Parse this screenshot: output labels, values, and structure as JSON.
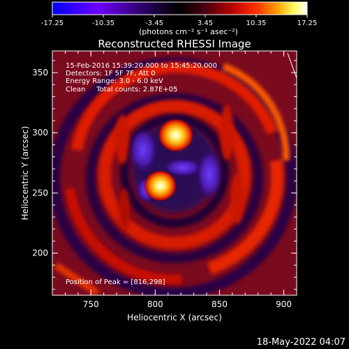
{
  "colorbar": {
    "ticks": [
      "-17.25",
      "-10.35",
      "-3.45",
      "3.45",
      "10.35",
      "17.25"
    ],
    "units": "(photons cm⁻² s⁻¹ asec⁻²)",
    "stops": [
      "#0000ff",
      "#6f00ff",
      "#2a0060",
      "#000000",
      "#4a0010",
      "#b00000",
      "#ff3000",
      "#ff9a00",
      "#ffff60",
      "#ffffff"
    ]
  },
  "chart_data": {
    "type": "heatmap",
    "title": "Reconstructed RHESSI Image",
    "xlabel": "Heliocentric X (arcsec)",
    "ylabel": "Heliocentric Y (arcsec)",
    "xlim": [
      720,
      910
    ],
    "ylim": [
      165,
      368
    ],
    "xticks": [
      "750",
      "800",
      "850",
      "900"
    ],
    "yticks": [
      "200",
      "250",
      "300",
      "350"
    ],
    "zlim": [
      -17.25,
      17.25
    ],
    "peaks": [
      {
        "x": 816,
        "y": 298,
        "value": 17.25
      },
      {
        "x": 804,
        "y": 256,
        "value": 15.5
      }
    ],
    "annotations": [
      "15-Feb-2016 15:39:20.000 to 15:45:20.000",
      "Detectors: 1F 5F 7F, Att 0",
      "Energy Range: 3.0 - 6.0 keV",
      "Clean     Total counts: 2.87E+05"
    ],
    "peak_text": "Position of Peak = [816,298]"
  },
  "footer": {
    "date": "18-May-2022 04:07"
  }
}
